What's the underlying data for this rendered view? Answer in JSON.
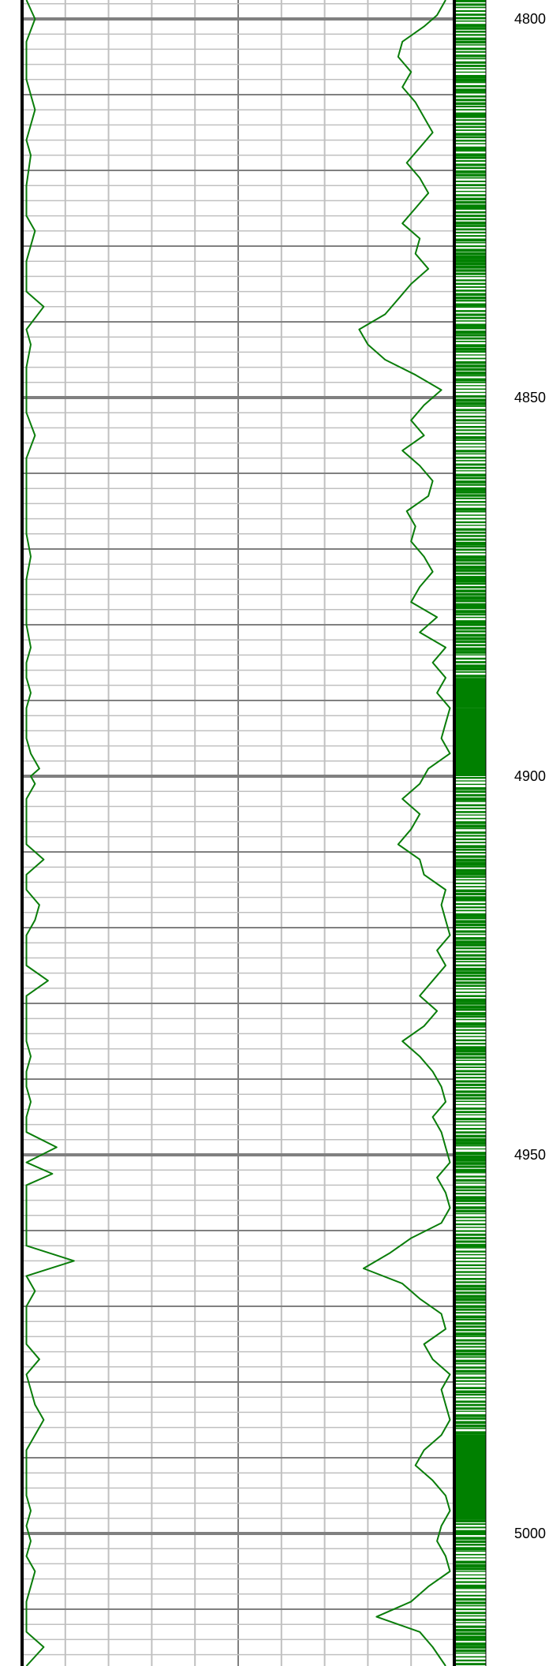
{
  "colors": {
    "curve": "#0a7d0a",
    "bar": "#008000",
    "grid_minor": "#c0c0c0",
    "grid_major": "#808080",
    "border": "#000000",
    "background": "#ffffff"
  },
  "chart_data": [
    {
      "type": "line",
      "description_role": "left-curve",
      "y": [
        4797.5,
        4800,
        4803,
        4808,
        4812,
        4816,
        4818,
        4822,
        4826,
        4828,
        4832,
        4836,
        4838,
        4841,
        4843,
        4846,
        4849,
        4852,
        4855,
        4858,
        4861,
        4864,
        4868,
        4871,
        4874,
        4877,
        4880,
        4883,
        4885,
        4887,
        4889,
        4891,
        4893,
        4895,
        4897,
        4899,
        4900,
        4901,
        4903,
        4905,
        4907,
        4909,
        4911,
        4913,
        4915,
        4917,
        4919,
        4921,
        4923,
        4925,
        4927,
        4929,
        4931,
        4933,
        4935,
        4937,
        4939,
        4941,
        4943,
        4945,
        4947,
        4949,
        4951,
        4952.5,
        4954,
        4955.5,
        4957,
        4958.5,
        4960,
        4962,
        4964,
        4966,
        4968,
        4970,
        4972,
        4973.5,
        4975,
        4977,
        4979,
        4981,
        4983,
        4985,
        4987,
        4989,
        4991,
        4993,
        4995,
        4997,
        4999,
        5001,
        5003,
        5005,
        5007,
        5009,
        5011,
        5013,
        5015,
        5017.5
      ],
      "x": [
        1,
        3,
        1,
        1,
        3,
        1,
        2,
        1,
        1,
        3,
        1,
        1,
        5,
        1,
        2,
        1,
        1,
        1,
        3,
        1,
        1,
        1,
        1,
        2,
        1,
        1,
        1,
        2,
        1,
        1,
        2,
        1,
        1,
        1,
        2,
        4,
        2,
        3,
        1,
        1,
        1,
        1,
        5,
        1,
        1,
        4,
        3,
        1,
        1,
        1,
        6,
        1,
        1,
        1,
        1,
        2,
        1,
        1,
        2,
        1,
        1,
        8,
        1,
        7,
        1,
        1,
        1,
        1,
        1,
        1,
        12,
        1,
        3,
        1,
        1,
        1,
        1,
        4,
        1,
        2,
        3,
        5,
        3,
        1,
        1,
        1,
        1,
        2,
        1,
        2,
        1,
        3,
        2,
        1,
        1,
        1,
        5,
        1
      ]
    },
    {
      "type": "line",
      "description_role": "right-curve",
      "y": [
        4797.5,
        4799.5,
        4801,
        4803,
        4805,
        4807,
        4809,
        4811,
        4813,
        4815,
        4817,
        4819,
        4821,
        4823,
        4825,
        4827,
        4829,
        4831,
        4833,
        4835,
        4837,
        4839,
        4841,
        4843,
        4845,
        4847,
        4849,
        4851,
        4853,
        4855,
        4857,
        4859,
        4861,
        4863,
        4865,
        4867,
        4869,
        4871,
        4873,
        4875,
        4877,
        4879,
        4881,
        4883,
        4885,
        4887,
        4889,
        4891,
        4893,
        4895,
        4897,
        4899,
        4901,
        4903,
        4905,
        4907,
        4909,
        4911,
        4913,
        4915,
        4917,
        4919,
        4921,
        4923,
        4925,
        4927,
        4929,
        4931,
        4933,
        4935,
        4937,
        4939,
        4941,
        4943,
        4945,
        4947,
        4949,
        4951,
        4953,
        4955,
        4957,
        4959,
        4961,
        4963,
        4965,
        4967,
        4969,
        4971,
        4973,
        4975,
        4977,
        4979,
        4981,
        4983,
        4985,
        4987,
        4989,
        4991,
        4993,
        4995,
        4997,
        4999,
        5001,
        5003,
        5005,
        5007,
        5009,
        5011,
        5013,
        5015,
        5017.5
      ],
      "x": [
        98,
        96,
        93,
        88,
        87,
        90,
        88,
        91,
        93,
        95,
        92,
        89,
        92,
        94,
        91,
        88,
        92,
        91,
        94,
        90,
        87,
        84,
        78,
        80,
        84,
        91,
        97,
        93,
        90,
        93,
        88,
        92,
        95,
        94,
        89,
        91,
        90,
        93,
        95,
        92,
        90,
        96,
        92,
        98,
        95,
        98,
        96,
        99,
        98,
        97,
        99,
        94,
        92,
        88,
        92,
        90,
        87,
        92,
        93,
        98,
        97,
        98,
        99,
        96,
        98,
        95,
        92,
        96,
        93,
        88,
        92,
        95,
        97,
        98,
        95,
        97,
        98,
        99,
        96,
        98,
        99,
        97,
        90,
        85,
        79,
        88,
        92,
        97,
        98,
        93,
        95,
        99,
        97,
        98,
        99,
        97,
        93,
        91,
        95,
        98,
        99,
        97,
        96,
        98,
        99,
        94,
        90,
        82,
        92,
        95,
        98
      ]
    },
    {
      "type": "bar",
      "description_role": "right-track-pattern",
      "solid_ranges": [
        [
          4891,
          4900
        ],
        [
          4887,
          4891
        ],
        [
          4987,
          4998
        ]
      ],
      "spacing": 0.45
    }
  ],
  "axis": {
    "depth_min": 4797.5,
    "depth_max": 5017.5,
    "major_step": 50,
    "mid_step": 10,
    "minor_step": 2,
    "tick_labels": [
      "4800",
      "4850",
      "4900",
      "4950",
      "5000"
    ],
    "tick_values": [
      4800,
      4850,
      4900,
      4950,
      5000
    ]
  }
}
